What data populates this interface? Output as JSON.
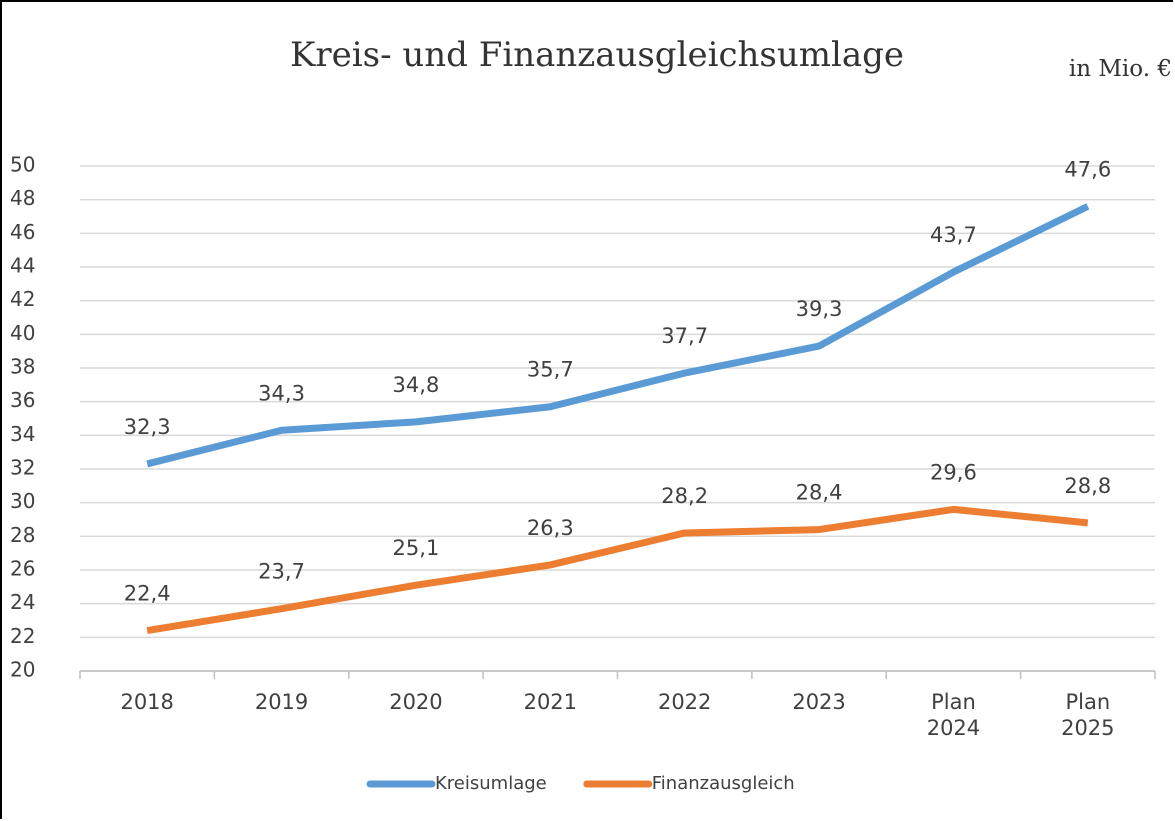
{
  "chart_data": {
    "type": "line",
    "title": "Kreis- und Finanzausgleichsumlage",
    "subtitle": "in Mio. €",
    "categories": [
      "2018",
      "2019",
      "2020",
      "2021",
      "2022",
      "2023",
      "Plan 2024",
      "Plan 2025"
    ],
    "series": [
      {
        "name": "Kreisumlage",
        "color": "#5b9bd5",
        "values": [
          32.3,
          34.3,
          34.8,
          35.7,
          37.7,
          39.3,
          43.7,
          47.6
        ],
        "value_labels": [
          "32,3",
          "34,3",
          "34,8",
          "35,7",
          "37,7",
          "39,3",
          "43,7",
          "47,6"
        ]
      },
      {
        "name": "Finanzausgleich",
        "color": "#ed7d31",
        "values": [
          22.4,
          23.7,
          25.1,
          26.3,
          28.2,
          28.4,
          29.6,
          28.8
        ],
        "value_labels": [
          "22,4",
          "23,7",
          "25,1",
          "26,3",
          "28,2",
          "28,4",
          "29,6",
          "28,8"
        ]
      }
    ],
    "ylim": [
      20,
      50
    ],
    "yticks": [
      20,
      22,
      24,
      26,
      28,
      30,
      32,
      34,
      36,
      38,
      40,
      42,
      44,
      46,
      48,
      50
    ],
    "grid": true,
    "legend": "bottom"
  }
}
